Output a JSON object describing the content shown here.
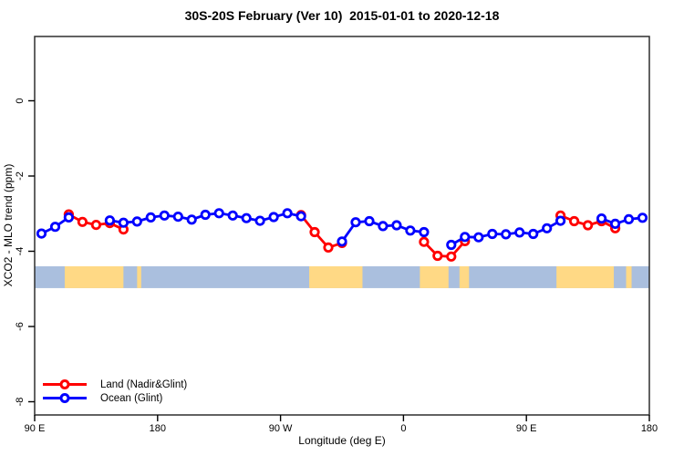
{
  "title": "30S-20S February (Ver 10)  2015-01-01 to 2020-12-18",
  "colors": {
    "box": "#2e2e2e",
    "tick": "#000000"
  },
  "chart_data": {
    "type": "line",
    "title": "30S-20S February (Ver 10)  2015-01-01 to 2020-12-18",
    "xlabel": "Longitude (deg E)",
    "ylabel": "XCO2 - MLO trend (ppm)",
    "xlim": [
      90,
      540
    ],
    "ylim": [
      -8.35,
      1.7
    ],
    "x_ticks": {
      "lons": [
        90,
        180,
        270,
        360,
        450,
        540
      ],
      "labels": [
        "90 E",
        "180",
        "90 W",
        "0",
        "90 E",
        "180"
      ]
    },
    "y_ticks": {
      "values": [
        0,
        -2,
        -4,
        -6,
        -8
      ],
      "labels": [
        "0",
        "-2",
        "-4",
        "-6",
        "-8"
      ]
    },
    "legend_position": "bottom-left",
    "x": [
      95,
      105,
      115,
      125,
      135,
      145,
      155,
      165,
      175,
      185,
      195,
      205,
      215,
      225,
      235,
      245,
      255,
      265,
      275,
      285,
      295,
      305,
      315,
      325,
      335,
      345,
      355,
      365,
      375,
      385,
      395,
      405,
      415,
      425,
      435,
      445,
      455,
      465,
      475,
      485,
      495,
      505,
      515,
      525,
      535
    ],
    "series": [
      {
        "name": "Land (Nadir&Glint)",
        "color": "#ff0000",
        "values": [
          null,
          null,
          -3.02,
          -3.22,
          -3.3,
          -3.25,
          -3.42,
          null,
          null,
          null,
          null,
          null,
          null,
          null,
          null,
          null,
          null,
          null,
          null,
          -3.04,
          -3.49,
          -3.9,
          -3.78,
          null,
          null,
          null,
          null,
          null,
          -3.75,
          -4.12,
          -4.14,
          -3.73,
          null,
          null,
          null,
          null,
          null,
          null,
          -3.05,
          -3.2,
          -3.31,
          -3.2,
          -3.39,
          null,
          null
        ]
      },
      {
        "name": "Ocean (Glint)",
        "color": "#0000ff",
        "values": [
          -3.53,
          -3.35,
          -3.1,
          null,
          null,
          -3.18,
          -3.24,
          -3.21,
          -3.1,
          -3.05,
          -3.08,
          -3.16,
          -3.03,
          -2.99,
          -3.05,
          -3.12,
          -3.19,
          -3.09,
          -2.99,
          -3.07,
          null,
          null,
          -3.74,
          -3.23,
          -3.2,
          -3.33,
          -3.31,
          -3.45,
          -3.49,
          null,
          -3.83,
          -3.62,
          -3.63,
          -3.54,
          -3.55,
          -3.5,
          -3.54,
          -3.39,
          -3.19,
          null,
          null,
          -3.13,
          -3.27,
          -3.15,
          -3.11
        ]
      }
    ],
    "map_band": {
      "description": "30S-20S latitude map strip",
      "value_top": -4.4,
      "value_bottom": -4.98,
      "ocean_color": "#aabfde",
      "land_color": "#ffd985",
      "land_segments_lon": [
        [
          112,
          155
        ],
        [
          165,
          168
        ],
        [
          291,
          330
        ],
        [
          372,
          393
        ],
        [
          401,
          408
        ],
        [
          472,
          514
        ],
        [
          523,
          527
        ]
      ]
    }
  }
}
